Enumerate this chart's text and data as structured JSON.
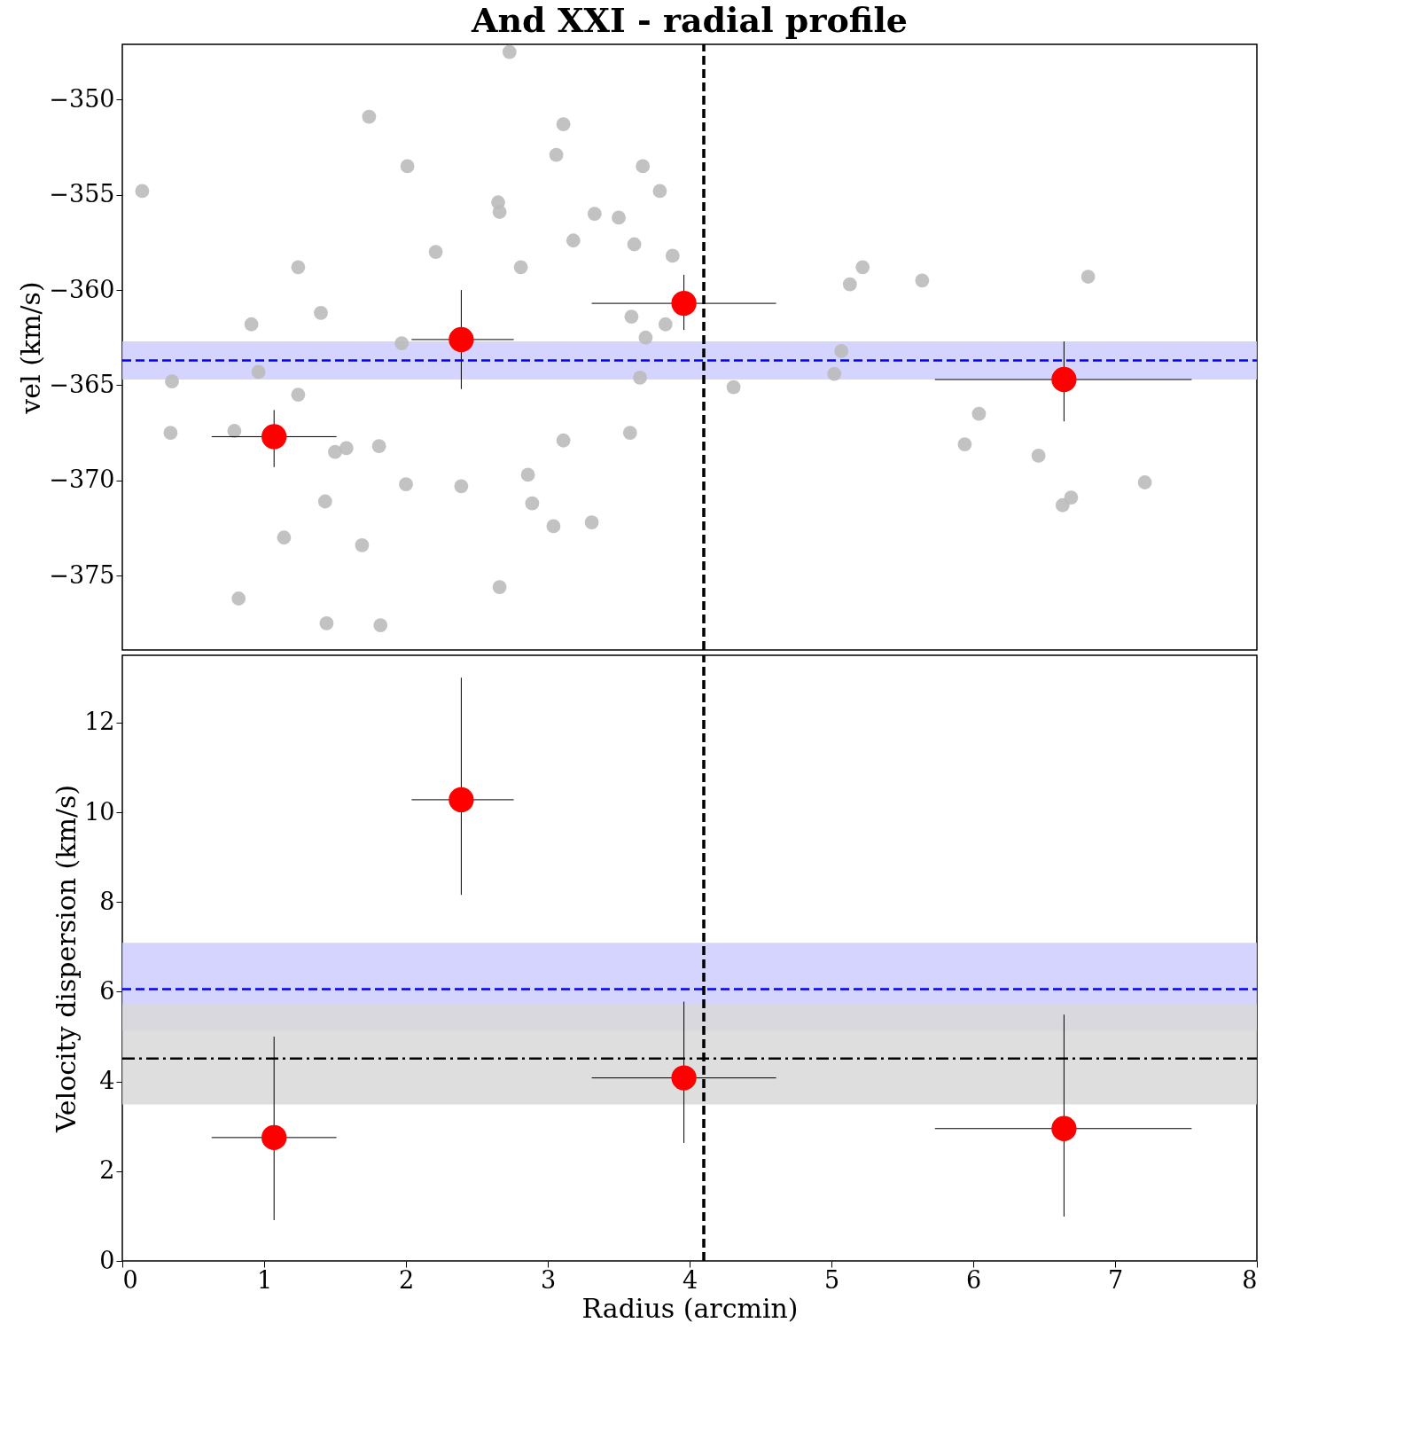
{
  "chart_data": [
    {
      "type": "scatter",
      "title": "And XXI - radial profile",
      "ylabel": "vel (km/s)",
      "xlim": [
        0,
        8
      ],
      "xticks": [
        0,
        1,
        2,
        3,
        4,
        5,
        6,
        7,
        8
      ],
      "ylim": [
        -378.9,
        -347.1
      ],
      "yticks": [
        -350,
        -355,
        -360,
        -365,
        -370,
        -375
      ],
      "tick_labels": "y",
      "grid": false,
      "marker": "circle",
      "series": [
        {
          "color": "#bbbbbb",
          "x": [
            0.14,
            0.35,
            0.34,
            0.79,
            0.82,
            0.91,
            0.96,
            1.24,
            1.24,
            1.14,
            1.4,
            1.43,
            1.44,
            1.5,
            1.58,
            1.69,
            1.74,
            1.81,
            1.82,
            1.97,
            2.0,
            2.01,
            2.21,
            2.39,
            2.65,
            2.66,
            2.66,
            2.73,
            2.81,
            2.86,
            2.89,
            3.04,
            3.06,
            3.11,
            3.11,
            3.18,
            3.31,
            3.33,
            3.5,
            3.61,
            3.59,
            3.58,
            3.65,
            3.67,
            3.69,
            3.79,
            3.83,
            3.88,
            4.31,
            5.02,
            5.07,
            5.13,
            5.22,
            5.64,
            5.94,
            6.04,
            6.46,
            6.63,
            6.69,
            6.81,
            7.21
          ],
          "values": [
            -354.8,
            -364.8,
            -367.5,
            -367.4,
            -376.2,
            -361.8,
            -364.3,
            -358.8,
            -365.5,
            -373.0,
            -361.2,
            -371.1,
            -377.5,
            -368.5,
            -368.3,
            -373.4,
            -350.9,
            -368.2,
            -377.6,
            -362.8,
            -370.2,
            -353.5,
            -358.0,
            -370.3,
            -355.4,
            -355.9,
            -375.6,
            -347.5,
            -358.8,
            -369.7,
            -371.2,
            -372.4,
            -352.9,
            -351.3,
            -367.9,
            -357.4,
            -372.2,
            -356.0,
            -356.2,
            -357.6,
            -361.4,
            -367.5,
            -364.6,
            -353.5,
            -362.5,
            -354.8,
            -361.8,
            -358.2,
            -365.1,
            -364.4,
            -363.2,
            -359.7,
            -358.8,
            -359.5,
            -368.1,
            -366.5,
            -368.7,
            -371.3,
            -370.9,
            -359.3,
            -370.1
          ]
        },
        {
          "color": "#ff0000",
          "x": [
            1.07,
            2.39,
            3.96,
            6.64
          ],
          "values": [
            -367.7,
            -362.6,
            -360.7,
            -364.7
          ],
          "errors": [
            [
              -369.3,
              -366.3
            ],
            [
              -365.2,
              -360.0
            ],
            [
              -362.1,
              -359.2
            ],
            [
              -366.9,
              -362.7
            ]
          ],
          "xerrors": [
            [
              0.63,
              1.51
            ],
            [
              2.04,
              2.76
            ],
            [
              3.31,
              4.61
            ],
            [
              5.73,
              7.54
            ]
          ]
        }
      ],
      "bands": [
        {
          "axis": "y",
          "from": -364.7,
          "to": -362.7,
          "color": "#ccccff"
        }
      ],
      "ref_lines": [
        {
          "axis": "y",
          "value": -363.7,
          "color": "#0000ff",
          "line_style": "dashed"
        },
        {
          "axis": "x",
          "value": 4.1,
          "color": "#000000",
          "line_style": "dashed"
        }
      ]
    },
    {
      "type": "scatter",
      "xlabel": "Radius (arcmin)",
      "ylabel": "Velocity dispersion (km/s)",
      "xlim": [
        0,
        8
      ],
      "xticks": [
        0,
        1,
        2,
        3,
        4,
        5,
        6,
        7,
        8
      ],
      "ylim": [
        0,
        13.5
      ],
      "yticks": [
        0,
        2,
        4,
        6,
        8,
        10,
        12
      ],
      "grid": false,
      "marker": "circle",
      "series": [
        {
          "color": "#ff0000",
          "x": [
            1.07,
            2.39,
            3.96,
            6.64
          ],
          "values": [
            2.75,
            10.28,
            4.08,
            2.95
          ],
          "errors": [
            [
              0.91,
              5.0
            ],
            [
              8.16,
              13.0
            ],
            [
              2.63,
              5.78
            ],
            [
              0.99,
              5.49
            ]
          ],
          "xerrors": [
            [
              0.63,
              1.51
            ],
            [
              2.04,
              2.76
            ],
            [
              3.31,
              4.61
            ],
            [
              5.73,
              7.54
            ]
          ]
        }
      ],
      "bands": [
        {
          "axis": "y",
          "from": 5.13,
          "to": 7.09,
          "color": "#ccccff"
        },
        {
          "axis": "y",
          "from": 3.49,
          "to": 5.72,
          "color": "#d8d8d8"
        }
      ],
      "ref_lines": [
        {
          "axis": "y",
          "value": 6.06,
          "color": "#0000ff",
          "line_style": "dashed"
        },
        {
          "axis": "y",
          "value": 4.51,
          "color": "#000000",
          "line_style": "dashdot"
        },
        {
          "axis": "x",
          "value": 4.1,
          "color": "#000000",
          "line_style": "dashed"
        }
      ]
    }
  ]
}
